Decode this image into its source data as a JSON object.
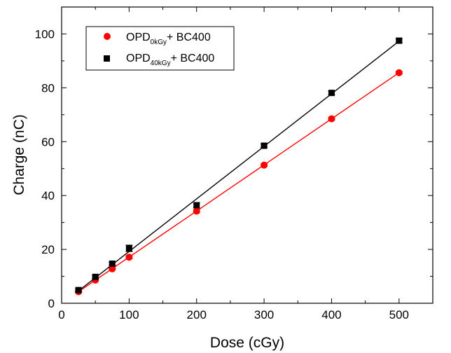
{
  "chart_data": {
    "type": "scatter",
    "xlabel": "Dose (cGy)",
    "ylabel": "Charge (nC)",
    "xlim": [
      0,
      550
    ],
    "ylim": [
      0,
      110
    ],
    "xticks": [
      0,
      100,
      200,
      300,
      400,
      500
    ],
    "yticks": [
      0,
      20,
      40,
      60,
      80,
      100
    ],
    "grid": false,
    "legend_position": "top-left",
    "series": [
      {
        "name_base": "OPD",
        "name_sub": "0kGy",
        "name_suffix": "+ BC400",
        "color": "#ff0000",
        "marker": "circle",
        "x": [
          25,
          50,
          75,
          100,
          200,
          300,
          400,
          500
        ],
        "y": [
          4.3,
          8.6,
          12.8,
          17.1,
          34.2,
          51.3,
          68.5,
          85.6
        ],
        "err": [
          0.3,
          0.4,
          0.4,
          0.6,
          0.6,
          0.5,
          0.5,
          0.5
        ],
        "fit": {
          "x": [
            25,
            500
          ],
          "y": [
            4.3,
            85.6
          ]
        }
      },
      {
        "name_base": "OPD",
        "name_sub": "40kGy",
        "name_suffix": "+ BC400",
        "color": "#000000",
        "marker": "square",
        "x": [
          25,
          50,
          75,
          100,
          200,
          300,
          400,
          500
        ],
        "y": [
          4.9,
          9.8,
          14.7,
          20.4,
          36.4,
          58.5,
          78.1,
          97.5
        ],
        "err": [
          0.4,
          0.5,
          0.5,
          1.2,
          1.0,
          0.6,
          0.6,
          0.7
        ],
        "fit": {
          "x": [
            25,
            500
          ],
          "y": [
            4.6,
            97.3
          ]
        }
      }
    ]
  }
}
